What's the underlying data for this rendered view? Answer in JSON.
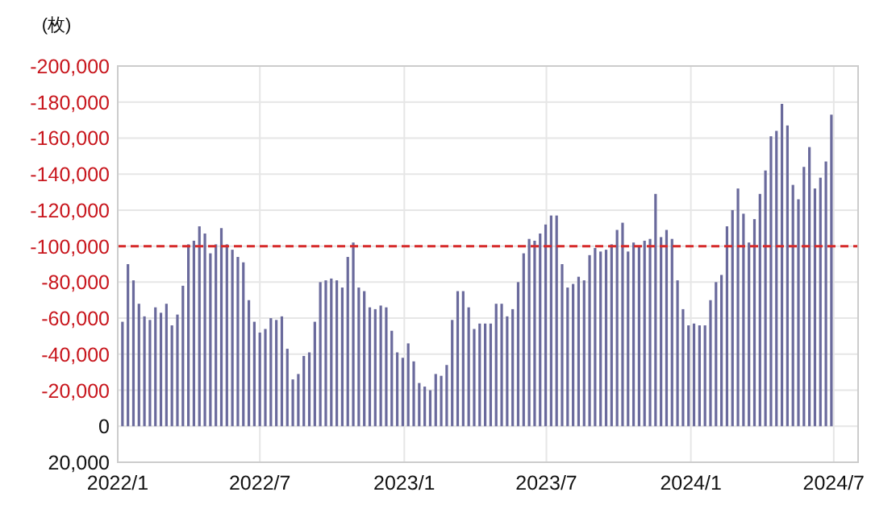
{
  "chart_data": {
    "type": "bar",
    "ylabel": "(枚)",
    "x": [
      "2022-01-07",
      "2022-01-14",
      "2022-01-21",
      "2022-01-28",
      "2022-02-04",
      "2022-02-11",
      "2022-02-18",
      "2022-02-25",
      "2022-03-04",
      "2022-03-11",
      "2022-03-18",
      "2022-03-25",
      "2022-04-01",
      "2022-04-08",
      "2022-04-15",
      "2022-04-22",
      "2022-04-29",
      "2022-05-06",
      "2022-05-13",
      "2022-05-20",
      "2022-05-27",
      "2022-06-03",
      "2022-06-10",
      "2022-06-17",
      "2022-06-24",
      "2022-07-01",
      "2022-07-08",
      "2022-07-15",
      "2022-07-22",
      "2022-07-29",
      "2022-08-05",
      "2022-08-12",
      "2022-08-19",
      "2022-08-26",
      "2022-09-02",
      "2022-09-09",
      "2022-09-16",
      "2022-09-23",
      "2022-09-30",
      "2022-10-07",
      "2022-10-14",
      "2022-10-21",
      "2022-10-28",
      "2022-11-04",
      "2022-11-11",
      "2022-11-18",
      "2022-11-25",
      "2022-12-02",
      "2022-12-09",
      "2022-12-16",
      "2022-12-23",
      "2022-12-30",
      "2023-01-06",
      "2023-01-13",
      "2023-01-20",
      "2023-01-27",
      "2023-02-03",
      "2023-02-10",
      "2023-02-17",
      "2023-02-24",
      "2023-03-03",
      "2023-03-10",
      "2023-03-17",
      "2023-03-24",
      "2023-03-31",
      "2023-04-07",
      "2023-04-14",
      "2023-04-21",
      "2023-04-28",
      "2023-05-05",
      "2023-05-12",
      "2023-05-19",
      "2023-05-26",
      "2023-06-02",
      "2023-06-09",
      "2023-06-16",
      "2023-06-23",
      "2023-06-30",
      "2023-07-07",
      "2023-07-14",
      "2023-07-21",
      "2023-07-28",
      "2023-08-04",
      "2023-08-11",
      "2023-08-18",
      "2023-08-25",
      "2023-09-01",
      "2023-09-08",
      "2023-09-15",
      "2023-09-22",
      "2023-09-29",
      "2023-10-06",
      "2023-10-13",
      "2023-10-20",
      "2023-10-27",
      "2023-11-03",
      "2023-11-10",
      "2023-11-17",
      "2023-11-24",
      "2023-12-01",
      "2023-12-08",
      "2023-12-15",
      "2023-12-22",
      "2023-12-29",
      "2024-01-05",
      "2024-01-12",
      "2024-01-19",
      "2024-01-26",
      "2024-02-02",
      "2024-02-09",
      "2024-02-16",
      "2024-02-23",
      "2024-03-01",
      "2024-03-08",
      "2024-03-15",
      "2024-03-22",
      "2024-03-29",
      "2024-04-05",
      "2024-04-12",
      "2024-04-19",
      "2024-04-26",
      "2024-05-03",
      "2024-05-10",
      "2024-05-17",
      "2024-05-24",
      "2024-05-31",
      "2024-06-07",
      "2024-06-14",
      "2024-06-21",
      "2024-06-28"
    ],
    "values": [
      -58000,
      -90000,
      -81000,
      -68000,
      -61000,
      -59000,
      -66000,
      -63000,
      -68000,
      -56000,
      -62000,
      -78000,
      -101000,
      -103000,
      -111000,
      -107000,
      -96000,
      -101000,
      -110000,
      -101000,
      -98000,
      -94000,
      -91000,
      -70000,
      -58000,
      -52000,
      -54000,
      -60000,
      -59000,
      -61000,
      -43000,
      -26000,
      -29000,
      -39000,
      -41000,
      -58000,
      -80000,
      -81000,
      -82000,
      -81000,
      -77000,
      -94000,
      -102000,
      -77000,
      -75000,
      -66000,
      -65000,
      -67000,
      -66000,
      -53000,
      -41000,
      -38000,
      -46000,
      -36000,
      -24000,
      -22000,
      -20000,
      -29000,
      -28000,
      -34000,
      -59000,
      -75000,
      -75000,
      -66000,
      -54000,
      -57000,
      -57000,
      -57000,
      -68000,
      -68000,
      -61000,
      -65000,
      -80000,
      -96000,
      -104000,
      -103000,
      -107000,
      -112000,
      -117000,
      -117000,
      -90000,
      -77000,
      -79000,
      -83000,
      -81000,
      -95000,
      -99000,
      -97000,
      -98000,
      -101000,
      -109000,
      -113000,
      -97000,
      -102000,
      -100000,
      -103000,
      -104000,
      -129000,
      -105000,
      -109000,
      -104000,
      -81000,
      -65000,
      -56000,
      -57000,
      -56000,
      -56000,
      -70000,
      -80000,
      -84000,
      -111000,
      -120000,
      -132000,
      -118000,
      -102000,
      -115000,
      -129000,
      -142000,
      -161000,
      -164000,
      -179000,
      -167000,
      -134000,
      -126000,
      -144000,
      -155000,
      -132000,
      -138000,
      -147000,
      -173000
    ],
    "color": "#6a6a9c",
    "xlim": [
      "2022-01-01",
      "2024-08-01"
    ],
    "xticks": [
      {
        "value": "2022-01-01",
        "label": "2022/1"
      },
      {
        "value": "2022-07-01",
        "label": "2022/7"
      },
      {
        "value": "2023-01-01",
        "label": "2023/1"
      },
      {
        "value": "2023-07-01",
        "label": "2023/7"
      },
      {
        "value": "2024-01-01",
        "label": "2024/1"
      },
      {
        "value": "2024-07-01",
        "label": "2024/7"
      }
    ],
    "ylim": [
      20000,
      -200000
    ],
    "yticks": [
      {
        "value": -200000,
        "label": "-200,000"
      },
      {
        "value": -180000,
        "label": "-180,000"
      },
      {
        "value": -160000,
        "label": "-160,000"
      },
      {
        "value": -140000,
        "label": "-140,000"
      },
      {
        "value": -120000,
        "label": "-120,000"
      },
      {
        "value": -100000,
        "label": "-100,000"
      },
      {
        "value": -80000,
        "label": "-80,000"
      },
      {
        "value": -60000,
        "label": "-60,000"
      },
      {
        "value": -40000,
        "label": "-40,000"
      },
      {
        "value": -20000,
        "label": "-20,000"
      },
      0,
      {
        "value": 20000,
        "label": "20,000"
      }
    ],
    "ref_lines": [
      {
        "axis": "y",
        "value": -100000,
        "label": null,
        "color": "#d62a2a",
        "line_style": "dashed"
      }
    ],
    "grid": true
  }
}
